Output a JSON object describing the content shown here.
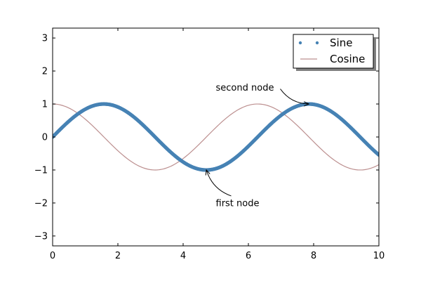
{
  "chart_data": {
    "type": "line",
    "title": "",
    "xlabel": "",
    "ylabel": "",
    "xlim": [
      0,
      10
    ],
    "ylim": [
      -3.3,
      3.3
    ],
    "x_ticks": [
      0,
      2,
      4,
      6,
      8,
      10
    ],
    "y_ticks": [
      -3,
      -2,
      -1,
      0,
      1,
      2,
      3
    ],
    "x_tick_labels": [
      "0",
      "2",
      "4",
      "6",
      "8",
      "10"
    ],
    "y_tick_labels": [
      "−3",
      "−2",
      "−1",
      "0",
      "1",
      "2",
      "3"
    ],
    "grid": false,
    "legend_position": "top-right",
    "series": [
      {
        "name": "Sine",
        "function": "sin(x)",
        "style": "points",
        "color": "#4682b4",
        "x_range": [
          0,
          10
        ],
        "sample_count": 500
      },
      {
        "name": "Cosine",
        "function": "cos(x)",
        "style": "line",
        "color": "#bc8f8f",
        "x_range": [
          0,
          10
        ],
        "sample_count": 200
      }
    ],
    "annotations": [
      {
        "text": "first node",
        "point": [
          4.712,
          -1
        ],
        "text_at": [
          5,
          -2
        ]
      },
      {
        "text": "second node",
        "point": [
          7.854,
          1
        ],
        "text_at": [
          5,
          1.5
        ]
      }
    ]
  }
}
